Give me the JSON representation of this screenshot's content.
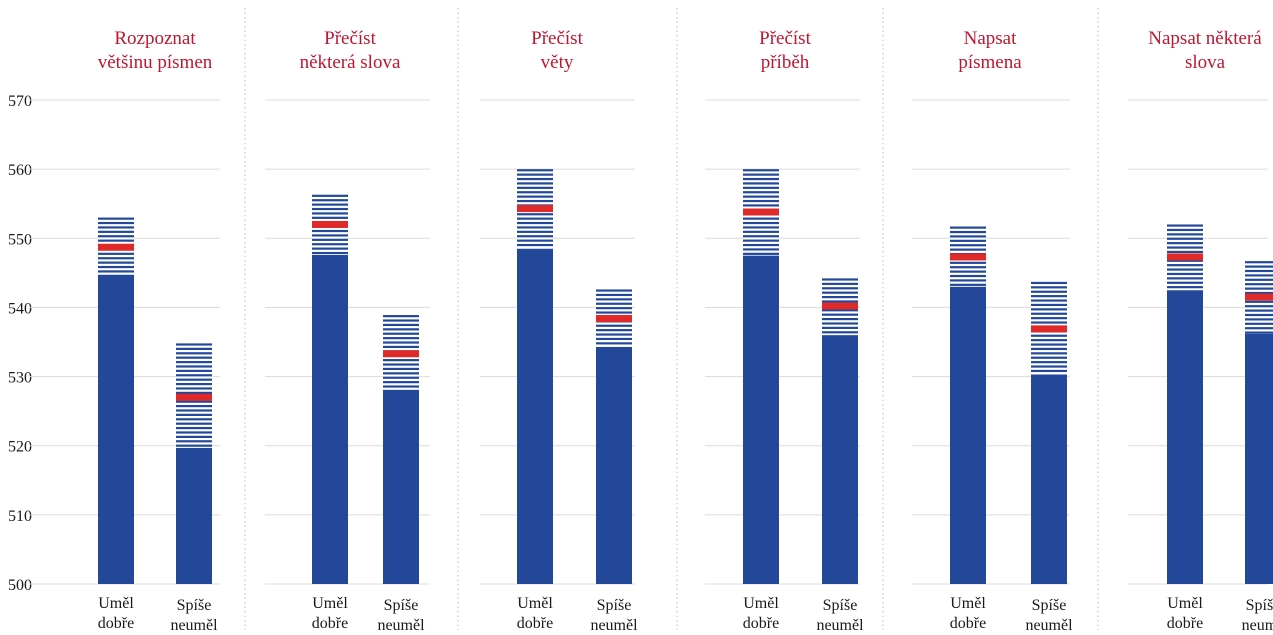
{
  "chart_data": {
    "type": "bar",
    "y_ticks": [
      "570",
      "560",
      "550",
      "540",
      "530",
      "520",
      "510",
      "500"
    ],
    "ylim": [
      500,
      570
    ],
    "colors": {
      "bar": "#23489a",
      "stripe": "#23489a",
      "mean": "#e02a2a",
      "grid": "#dcdcdc",
      "separator": "#bbbbbb",
      "title": "#c0152f"
    },
    "panels": [
      {
        "title_lines": [
          "Rozpoznat",
          "většinu písmen"
        ],
        "categories": [
          {
            "label_lines": [
              "Uměl",
              "dobře"
            ],
            "low": 544.5,
            "mean": 548.7,
            "high": 553.0
          },
          {
            "label_lines": [
              "Spíše",
              "neuměl"
            ],
            "low": 519.7,
            "mean": 527.0,
            "high": 534.8
          }
        ]
      },
      {
        "title_lines": [
          "Přečíst",
          "některá slova"
        ],
        "categories": [
          {
            "label_lines": [
              "Uměl",
              "dobře"
            ],
            "low": 547.6,
            "mean": 552.0,
            "high": 556.3
          },
          {
            "label_lines": [
              "Spíše",
              "neuměl"
            ],
            "low": 528.0,
            "mean": 533.3,
            "high": 538.9
          }
        ]
      },
      {
        "title_lines": [
          "Přečíst",
          "věty"
        ],
        "categories": [
          {
            "label_lines": [
              "Uměl",
              "dobře"
            ],
            "low": 548.5,
            "mean": 554.3,
            "high": 560.0
          },
          {
            "label_lines": [
              "Spíše",
              "neuměl"
            ],
            "low": 534.3,
            "mean": 538.4,
            "high": 542.6
          }
        ]
      },
      {
        "title_lines": [
          "Přečíst",
          "příběh"
        ],
        "categories": [
          {
            "label_lines": [
              "Uměl",
              "dobře"
            ],
            "low": 547.5,
            "mean": 553.8,
            "high": 560.0
          },
          {
            "label_lines": [
              "Spíše",
              "neuměl"
            ],
            "low": 536.0,
            "mean": 540.2,
            "high": 544.2
          }
        ]
      },
      {
        "title_lines": [
          "Napsat",
          "písmena"
        ],
        "categories": [
          {
            "label_lines": [
              "Uměl",
              "dobře"
            ],
            "low": 543.0,
            "mean": 547.3,
            "high": 551.7
          },
          {
            "label_lines": [
              "Spíše",
              "neuměl"
            ],
            "low": 530.3,
            "mean": 536.9,
            "high": 543.7
          }
        ]
      },
      {
        "title_lines": [
          "Napsat některá",
          "slova"
        ],
        "categories": [
          {
            "label_lines": [
              "Uměl",
              "dobře"
            ],
            "low": 542.5,
            "mean": 547.3,
            "high": 552.0
          },
          {
            "label_lines": [
              "Spíše",
              "neumě"
            ],
            "low": 536.2,
            "mean": 541.5,
            "high": 546.7
          }
        ]
      }
    ]
  }
}
